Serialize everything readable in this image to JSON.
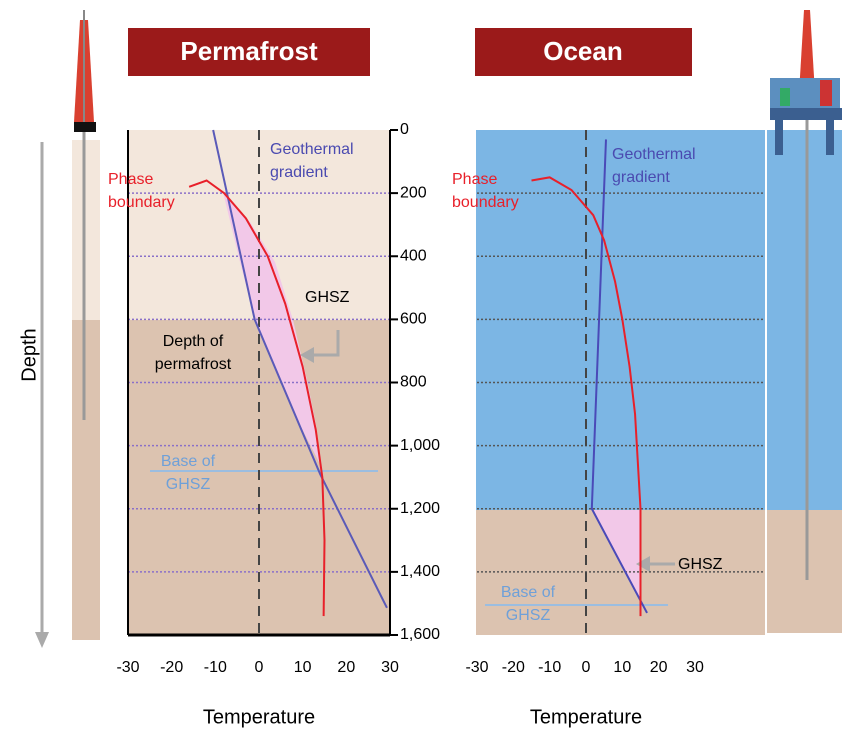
{
  "chart_data": [
    {
      "type": "line",
      "title": "Permafrost",
      "x_label": "Temperature",
      "y_label": "Depth",
      "xlim": [
        -30,
        30
      ],
      "xticks": [
        -30,
        -20,
        -10,
        0,
        10,
        20,
        30
      ],
      "ylim": [
        0,
        1600
      ],
      "yticks": [
        0,
        200,
        400,
        600,
        800,
        {
          "value": 1000,
          "label": "1,000"
        },
        {
          "value": 1200,
          "label": "1,200"
        },
        {
          "value": 1400,
          "label": "1,400"
        },
        {
          "value": 1600,
          "label": "1,600"
        }
      ],
      "grid": true,
      "grid_color": "#8a70c8",
      "series": [
        {
          "color": "#5a5ab8",
          "x": [
            -10.5,
            -1,
            14,
            29.3
          ],
          "y": [
            0,
            600,
            1090,
            1514
          ]
        },
        {
          "color": "#e8202a",
          "x": [
            -16,
            -12,
            -8,
            -3,
            2,
            6,
            10,
            13,
            14.5,
            15,
            14.8
          ],
          "y": [
            180,
            160,
            200,
            280,
            400,
            550,
            750,
            950,
            1100,
            1300,
            1540
          ]
        }
      ],
      "annotations": [
        {
          "text": [
            "Geothermal",
            "gradient"
          ],
          "color": "#4a4ab0"
        },
        {
          "text": [
            "Phase",
            "boundary"
          ],
          "color": "#e8202a"
        },
        {
          "text": [
            "GHSZ"
          ],
          "color": "#000000"
        },
        {
          "text": [
            "Depth of",
            "permafrost"
          ],
          "color": "#000000"
        },
        {
          "text": [
            "Base of",
            "GHSZ"
          ],
          "color": "#6fa0d8"
        }
      ]
    },
    {
      "type": "line",
      "title": "Ocean",
      "x_label": "Temperature",
      "xlim": [
        -30,
        30
      ],
      "xticks": [
        -30,
        -20,
        -10,
        0,
        10,
        20,
        30
      ],
      "ylim": [
        0,
        1600
      ],
      "grid": true,
      "grid_color": "#555555",
      "series": [
        {
          "color": "#4a4ab8",
          "x": [
            5.5,
            1.6,
            16.8
          ],
          "y": [
            30,
            1200,
            1530
          ]
        },
        {
          "color": "#e8202a",
          "x": [
            -15,
            -10,
            -4,
            2,
            5,
            8,
            10,
            12,
            13.5,
            15,
            15
          ],
          "y": [
            160,
            150,
            190,
            270,
            350,
            480,
            600,
            750,
            900,
            1200,
            1540
          ]
        }
      ],
      "annotations": [
        {
          "text": [
            "Geothermal",
            "gradient"
          ],
          "color": "#4a4ab0"
        },
        {
          "text": [
            "Phase",
            "boundary"
          ],
          "color": "#e8202a"
        },
        {
          "text": [
            "GHSZ"
          ],
          "color": "#000000"
        },
        {
          "text": [
            "Base of",
            "GHSZ"
          ],
          "color": "#6fa0d8"
        }
      ]
    }
  ]
}
